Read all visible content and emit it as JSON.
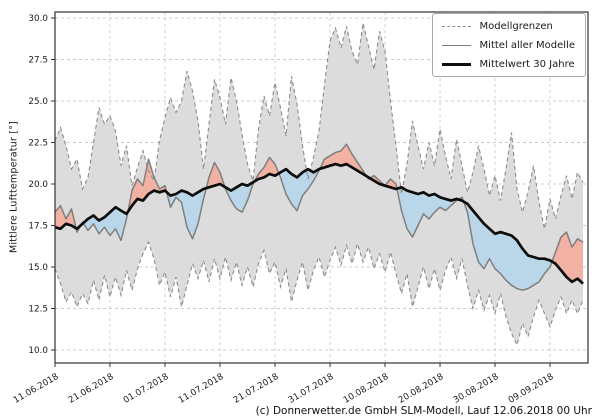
{
  "figure": {
    "ylabel": "Mittlere Lufttemperatur [°]",
    "caption": "(c) Donnerwetter.de GmbH SLM-Modell, Lauf 12.06.2018 00 Uhr"
  },
  "legend": {
    "position": "upper right",
    "items": [
      {
        "label": "Modellgrenzen",
        "style": "dashed-gray"
      },
      {
        "label": "Mittel aller Modelle",
        "style": "solid-gray"
      },
      {
        "label": "Mittelwert 30 Jahre",
        "style": "solid-black-thick"
      }
    ]
  },
  "chart_data": {
    "type": "line",
    "title": "",
    "xlabel": "",
    "ylabel": "Mittlere Lufttemperatur [°]",
    "caption": "(c) Donnerwetter.de GmbH SLM-Modell, Lauf 12.06.2018 00 Uhr",
    "grid": true,
    "legend_position": "upper right",
    "ylim": [
      9.2,
      30.4
    ],
    "yticks": [
      10.0,
      12.5,
      15.0,
      17.5,
      20.0,
      22.5,
      25.0,
      27.5,
      30.0
    ],
    "x_tick_labels": [
      "11.06.2018",
      "21.06.2018",
      "01.07.2018",
      "11.07.2018",
      "21.07.2018",
      "31.07.2018",
      "10.08.2018",
      "20.08.2018",
      "30.08.2018",
      "09.09.2018"
    ],
    "x_tick_days": [
      0,
      10,
      20,
      30,
      40,
      50,
      60,
      70,
      80,
      90
    ],
    "x_total_days": 96,
    "colors": {
      "band_fill": "#dcdcdc",
      "band_edge": "#8c8c8c",
      "model_mean_line": "#7f7f7f",
      "climate_mean_line": "#0d0d0d",
      "above_fill": "#f1b2a3",
      "below_fill": "#b9d7e8",
      "grid_line": "#cccccc",
      "spine": "#333333"
    },
    "series": [
      {
        "name": "Modellgrenzen (obere Grenze)",
        "role": "upper_bound",
        "values": [
          22.6,
          23.4,
          22.3,
          20.9,
          21.5,
          19.7,
          20.4,
          22.5,
          24.6,
          23.6,
          24.1,
          23.2,
          21.1,
          22.3,
          19.9,
          21.0,
          22.0,
          20.8,
          20.2,
          22.6,
          24.0,
          25.2,
          24.3,
          25.0,
          26.8,
          25.6,
          23.8,
          20.9,
          23.6,
          26.3,
          25.2,
          23.6,
          26.4,
          25.0,
          23.0,
          21.2,
          20.2,
          23.3,
          25.3,
          24.1,
          26.1,
          24.6,
          22.9,
          26.5,
          24.8,
          22.3,
          20.3,
          21.6,
          23.2,
          26.0,
          28.6,
          29.4,
          28.2,
          29.5,
          28.0,
          27.2,
          29.7,
          28.3,
          26.9,
          29.2,
          28.0,
          25.0,
          22.3,
          19.4,
          21.2,
          23.8,
          22.3,
          20.9,
          22.5,
          21.1,
          23.3,
          21.7,
          20.3,
          22.7,
          21.1,
          19.5,
          20.7,
          22.3,
          20.9,
          19.3,
          20.5,
          19.0,
          20.9,
          23.1,
          19.7,
          18.3,
          19.5,
          21.1,
          18.9,
          17.3,
          19.1,
          17.9,
          19.3,
          20.5,
          19.1,
          20.7,
          20.1
        ]
      },
      {
        "name": "Modellgrenzen (untere Grenze)",
        "role": "lower_bound",
        "values": [
          14.9,
          14.0,
          12.9,
          13.5,
          12.6,
          13.4,
          12.8,
          14.2,
          13.0,
          14.5,
          13.2,
          14.4,
          13.3,
          14.8,
          13.6,
          14.9,
          15.8,
          16.5,
          15.5,
          13.9,
          14.7,
          13.2,
          14.4,
          12.6,
          13.9,
          15.2,
          14.3,
          15.4,
          14.1,
          15.5,
          14.3,
          15.6,
          14.2,
          15.3,
          13.9,
          15.0,
          13.8,
          15.2,
          16.0,
          14.6,
          15.3,
          13.8,
          14.9,
          12.9,
          14.2,
          15.3,
          13.6,
          14.8,
          15.6,
          14.4,
          15.4,
          16.2,
          15.1,
          16.3,
          15.2,
          16.4,
          15.3,
          16.2,
          14.9,
          15.8,
          14.7,
          15.9,
          14.6,
          13.4,
          14.6,
          12.6,
          13.8,
          15.0,
          13.7,
          14.9,
          13.6,
          14.8,
          15.6,
          14.3,
          15.5,
          13.9,
          12.5,
          13.6,
          12.4,
          13.3,
          12.2,
          13.4,
          12.0,
          11.0,
          10.3,
          11.6,
          10.8,
          12.0,
          13.0,
          12.2,
          11.4,
          12.4,
          13.2,
          12.2,
          13.0,
          12.2,
          13.0
        ]
      },
      {
        "name": "Mittel aller Modelle",
        "role": "model_mean",
        "values": [
          18.3,
          18.7,
          17.9,
          18.5,
          17.1,
          17.7,
          17.2,
          17.6,
          17.0,
          17.4,
          16.9,
          17.3,
          16.6,
          17.9,
          19.6,
          20.3,
          19.9,
          21.5,
          20.4,
          19.7,
          19.9,
          18.6,
          19.2,
          18.9,
          17.4,
          16.7,
          17.6,
          19.1,
          20.4,
          21.3,
          20.7,
          19.7,
          19.0,
          18.5,
          18.3,
          19.0,
          20.0,
          20.6,
          21.0,
          21.6,
          21.2,
          20.4,
          19.4,
          18.8,
          18.4,
          19.3,
          19.7,
          20.2,
          20.8,
          21.5,
          21.7,
          21.9,
          22.0,
          22.4,
          21.8,
          21.3,
          20.8,
          20.3,
          20.5,
          20.2,
          19.9,
          20.3,
          20.0,
          18.4,
          17.3,
          16.8,
          17.5,
          18.2,
          17.9,
          18.3,
          18.6,
          18.4,
          18.7,
          19.0,
          19.2,
          18.3,
          16.4,
          15.3,
          14.9,
          15.5,
          14.9,
          14.6,
          14.2,
          13.9,
          13.7,
          13.6,
          13.7,
          13.9,
          14.1,
          14.6,
          15.0,
          15.9,
          16.8,
          17.1,
          16.2,
          16.7,
          16.5
        ]
      },
      {
        "name": "Mittelwert 30 Jahre",
        "role": "climate_mean",
        "values": [
          17.4,
          17.3,
          17.6,
          17.5,
          17.3,
          17.6,
          17.9,
          18.1,
          17.8,
          18.0,
          18.3,
          18.6,
          18.4,
          18.2,
          18.7,
          19.1,
          19.0,
          19.4,
          19.6,
          19.5,
          19.6,
          19.3,
          19.4,
          19.6,
          19.5,
          19.3,
          19.5,
          19.7,
          19.8,
          19.9,
          20.0,
          19.8,
          19.6,
          19.8,
          20.0,
          19.9,
          20.1,
          20.3,
          20.4,
          20.6,
          20.5,
          20.7,
          20.9,
          20.6,
          20.4,
          20.7,
          20.9,
          20.7,
          20.9,
          21.0,
          21.1,
          21.2,
          21.1,
          21.2,
          21.0,
          20.8,
          20.6,
          20.4,
          20.2,
          20.0,
          19.9,
          19.8,
          19.7,
          19.8,
          19.6,
          19.5,
          19.4,
          19.5,
          19.3,
          19.4,
          19.2,
          19.1,
          19.0,
          19.1,
          19.0,
          18.8,
          18.4,
          18.0,
          17.6,
          17.3,
          17.0,
          17.1,
          17.0,
          16.9,
          16.6,
          16.1,
          15.7,
          15.6,
          15.5,
          15.5,
          15.4,
          15.2,
          14.8,
          14.4,
          14.1,
          14.3,
          14.0
        ]
      }
    ]
  }
}
